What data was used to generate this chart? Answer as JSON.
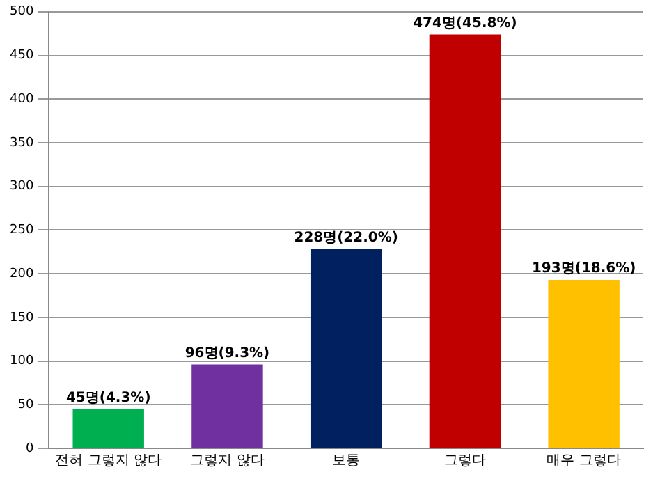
{
  "chart_data": {
    "type": "bar",
    "categories": [
      "전혀 그렇지 않다",
      "그렇지 않다",
      "보통",
      "그렇다",
      "매우 그렇다"
    ],
    "values": [
      45,
      96,
      228,
      474,
      193
    ],
    "colors": [
      "#00b050",
      "#7030a0",
      "#002060",
      "#c00000",
      "#ffc000"
    ],
    "value_labels": [
      "45명(4.3%)",
      "96명(9.3%)",
      "228명(22.0%)",
      "474명(45.8%)",
      "193명(18.6%)"
    ],
    "ylim": [
      0,
      500
    ],
    "yticks": [
      0,
      50,
      100,
      150,
      200,
      250,
      300,
      350,
      400,
      450,
      500
    ],
    "grid": "y",
    "legend": false
  }
}
